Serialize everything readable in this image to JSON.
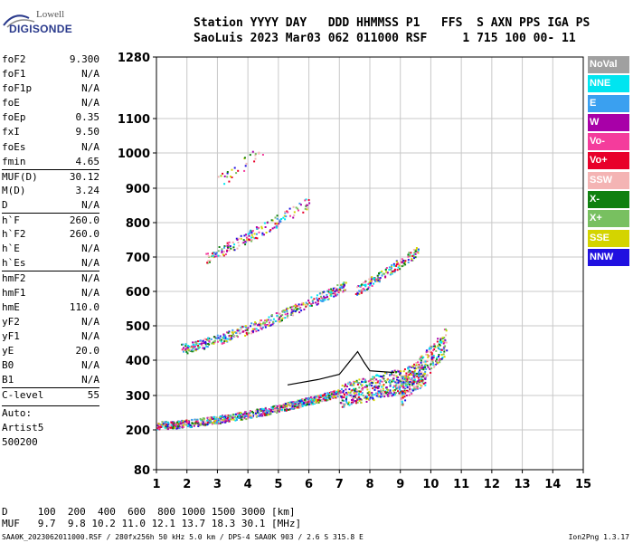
{
  "logo": {
    "line1": "Lowell",
    "line2": "DIGISONDE"
  },
  "header": {
    "line1": "Station YYYY DAY   DDD HHMMSS P1   FFS  S AXN PPS IGA PS",
    "line2": "SaoLuis 2023 Mar03 062 011000 RSF     1 715 100 00- 11"
  },
  "params": {
    "group1": [
      {
        "k": "foF2",
        "v": "9.300"
      },
      {
        "k": "foF1",
        "v": "N/A"
      },
      {
        "k": "foF1p",
        "v": "N/A"
      },
      {
        "k": "foE",
        "v": "N/A"
      },
      {
        "k": "foEp",
        "v": "0.35"
      },
      {
        "k": "fxI",
        "v": "9.50"
      },
      {
        "k": "foEs",
        "v": "N/A"
      },
      {
        "k": "fmin",
        "v": "4.65"
      }
    ],
    "group2": [
      {
        "k": "MUF(D)",
        "v": "30.12"
      },
      {
        "k": "M(D)",
        "v": "3.24"
      },
      {
        "k": "D",
        "v": "N/A"
      }
    ],
    "group3": [
      {
        "k": "h`F",
        "v": "260.0"
      },
      {
        "k": "h`F2",
        "v": "260.0"
      },
      {
        "k": "h`E",
        "v": "N/A"
      },
      {
        "k": "h`Es",
        "v": "N/A"
      }
    ],
    "group4": [
      {
        "k": "hmF2",
        "v": "N/A"
      },
      {
        "k": "hmF1",
        "v": "N/A"
      },
      {
        "k": "hmE",
        "v": "110.0"
      },
      {
        "k": "yF2",
        "v": "N/A"
      },
      {
        "k": "yF1",
        "v": "N/A"
      },
      {
        "k": "yE",
        "v": "20.0"
      },
      {
        "k": "B0",
        "v": "N/A"
      },
      {
        "k": "B1",
        "v": "N/A"
      }
    ],
    "group5": [
      {
        "k": "C-level",
        "v": "55"
      }
    ],
    "auto": [
      "Auto:",
      "Artist5",
      "500200"
    ]
  },
  "legend": [
    {
      "label": "NoVal",
      "color": "#a0a0a0"
    },
    {
      "label": "NNE",
      "color": "#00e5f0"
    },
    {
      "label": "E",
      "color": "#3aa0f0"
    },
    {
      "label": "W",
      "color": "#a800a8"
    },
    {
      "label": "Vo-",
      "color": "#f43c9c"
    },
    {
      "label": "Vo+",
      "color": "#e8002a"
    },
    {
      "label": "SSW",
      "color": "#f4b4b4"
    },
    {
      "label": "X-",
      "color": "#108010"
    },
    {
      "label": "X+",
      "color": "#78c060"
    },
    {
      "label": "SSE",
      "color": "#d4d400"
    },
    {
      "label": "NNW",
      "color": "#2010e0"
    }
  ],
  "axes": {
    "x_ticks": [
      "1",
      "2",
      "3",
      "4",
      "5",
      "6",
      "7",
      "8",
      "9",
      "10",
      "11",
      "12",
      "13",
      "14",
      "15"
    ],
    "y_ticks": [
      "80",
      "200",
      "300",
      "400",
      "500",
      "600",
      "700",
      "800",
      "900",
      "1000",
      "1100",
      "1280"
    ]
  },
  "bottom": {
    "d_line": "D     100  200  400  600  800 1000 1500 3000 [km]",
    "muf_line": "MUF   9.7  9.8 10.2 11.0 12.1 13.7 18.3 30.1 [MHz]",
    "footer": "SAA0K_2023062011000.RSF / 280fx256h 50 kHz 5.0 km / DPS-4 SAA0K 903 / 2.6 S 315.8 E",
    "version": "Ion2Png 1.3.17"
  }
}
